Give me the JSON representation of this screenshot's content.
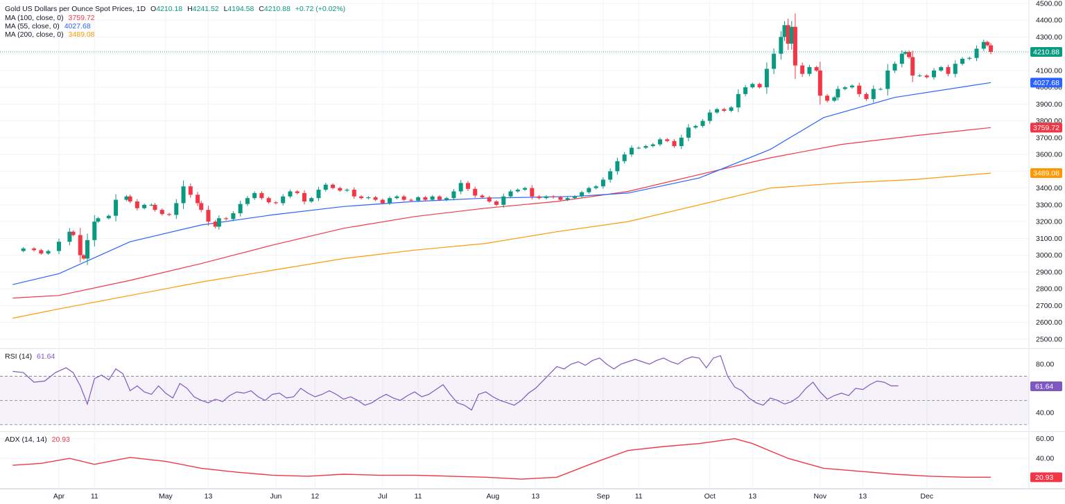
{
  "header": {
    "symbol": "Gold US Dollars per Ounce Spot Prices, 1D",
    "o_key": "O",
    "o": "4210.18",
    "h_key": "H",
    "h": "4241.52",
    "l_key": "L",
    "l": "4194.58",
    "c_key": "C",
    "c": "4210.88",
    "change": "+0.72 (+0.02%)"
  },
  "legends": {
    "ma100": {
      "label": "MA (100, close, 0)",
      "value": "3759.72",
      "color": "#f23645"
    },
    "ma55": {
      "label": "MA (55, close, 0)",
      "value": "4027.68",
      "color": "#2962ff"
    },
    "ma200": {
      "label": "MA (200, close, 0)",
      "value": "3489.08",
      "color": "#ff9800"
    },
    "rsi": {
      "label": "RSI (14)",
      "value": "61.64",
      "color": "#7e57c2"
    },
    "adx": {
      "label": "ADX (14, 14)",
      "value": "20.93",
      "color": "#f23645"
    }
  },
  "chart_data": {
    "type": "candlestick",
    "x_axis_labels": [
      {
        "label": "Apr",
        "day": 0
      },
      {
        "label": "11",
        "day": 10
      },
      {
        "label": "May",
        "day": 30
      },
      {
        "label": "13",
        "day": 42
      },
      {
        "label": "Jun",
        "day": 61
      },
      {
        "label": "12",
        "day": 72
      },
      {
        "label": "Jul",
        "day": 91
      },
      {
        "label": "11",
        "day": 101
      },
      {
        "label": "Aug",
        "day": 122
      },
      {
        "label": "13",
        "day": 134
      },
      {
        "label": "Sep",
        "day": 153
      },
      {
        "label": "11",
        "day": 163
      },
      {
        "label": "Oct",
        "day": 183
      },
      {
        "label": "13",
        "day": 195
      },
      {
        "label": "Nov",
        "day": 214
      },
      {
        "label": "13",
        "day": 226
      },
      {
        "label": "Dec",
        "day": 244
      }
    ],
    "price_axis": {
      "ticks": [
        2500,
        2600,
        2700,
        2800,
        2900,
        3000,
        3100,
        3200,
        3300,
        3400,
        3500,
        3600,
        3700,
        3800,
        3900,
        4000,
        4100,
        4200,
        4300,
        4400,
        4500
      ],
      "range": [
        2450,
        4520
      ]
    },
    "price_markers": [
      {
        "value": 4210.88,
        "label": "4210.88",
        "color": "#089981"
      },
      {
        "value": 4027.68,
        "label": "4027.68",
        "color": "#2962ff"
      },
      {
        "value": 3759.72,
        "label": "3759.72",
        "color": "#f23645"
      },
      {
        "value": 3489.08,
        "label": "3489.08",
        "color": "#ff9800"
      }
    ],
    "price_series": [
      [
        -12,
        3025
      ],
      [
        -10,
        3040
      ],
      [
        -7,
        3030
      ],
      [
        -5,
        3010
      ],
      [
        -3,
        3025
      ],
      [
        0,
        3080
      ],
      [
        3,
        3140
      ],
      [
        4,
        3120
      ],
      [
        6,
        3000
      ],
      [
        7,
        2980
      ],
      [
        8,
        3090
      ],
      [
        10,
        3200
      ],
      [
        11,
        3220
      ],
      [
        14,
        3235
      ],
      [
        16,
        3330
      ],
      [
        19,
        3350
      ],
      [
        20,
        3320
      ],
      [
        22,
        3280
      ],
      [
        24,
        3300
      ],
      [
        26,
        3300
      ],
      [
        27,
        3270
      ],
      [
        29,
        3245
      ],
      [
        31,
        3240
      ],
      [
        33,
        3310
      ],
      [
        35,
        3410
      ],
      [
        37,
        3360
      ],
      [
        39,
        3310
      ],
      [
        40,
        3270
      ],
      [
        42,
        3200
      ],
      [
        44,
        3170
      ],
      [
        45,
        3220
      ],
      [
        47,
        3215
      ],
      [
        49,
        3250
      ],
      [
        51,
        3305
      ],
      [
        53,
        3340
      ],
      [
        55,
        3370
      ],
      [
        57,
        3340
      ],
      [
        59,
        3315
      ],
      [
        61,
        3310
      ],
      [
        63,
        3350
      ],
      [
        65,
        3380
      ],
      [
        67,
        3370
      ],
      [
        69,
        3320
      ],
      [
        71,
        3340
      ],
      [
        73,
        3390
      ],
      [
        75,
        3420
      ],
      [
        77,
        3400
      ],
      [
        79,
        3385
      ],
      [
        81,
        3390
      ],
      [
        83,
        3350
      ],
      [
        85,
        3340
      ],
      [
        87,
        3345
      ],
      [
        89,
        3330
      ],
      [
        91,
        3310
      ],
      [
        93,
        3340
      ],
      [
        95,
        3350
      ],
      [
        97,
        3330
      ],
      [
        99,
        3325
      ],
      [
        101,
        3345
      ],
      [
        103,
        3330
      ],
      [
        105,
        3350
      ],
      [
        107,
        3330
      ],
      [
        109,
        3340
      ],
      [
        111,
        3380
      ],
      [
        113,
        3430
      ],
      [
        115,
        3395
      ],
      [
        117,
        3355
      ],
      [
        119,
        3345
      ],
      [
        121,
        3320
      ],
      [
        123,
        3300
      ],
      [
        125,
        3350
      ],
      [
        127,
        3380
      ],
      [
        129,
        3390
      ],
      [
        131,
        3400
      ],
      [
        133,
        3350
      ],
      [
        135,
        3340
      ],
      [
        137,
        3350
      ],
      [
        139,
        3345
      ],
      [
        141,
        3330
      ],
      [
        143,
        3340
      ],
      [
        145,
        3350
      ],
      [
        147,
        3375
      ],
      [
        149,
        3400
      ],
      [
        151,
        3410
      ],
      [
        153,
        3450
      ],
      [
        155,
        3500
      ],
      [
        157,
        3560
      ],
      [
        159,
        3600
      ],
      [
        161,
        3640
      ],
      [
        163,
        3640
      ],
      [
        165,
        3650
      ],
      [
        167,
        3660
      ],
      [
        169,
        3690
      ],
      [
        171,
        3680
      ],
      [
        173,
        3650
      ],
      [
        175,
        3700
      ],
      [
        177,
        3760
      ],
      [
        179,
        3770
      ],
      [
        181,
        3800
      ],
      [
        183,
        3850
      ],
      [
        185,
        3870
      ],
      [
        187,
        3860
      ],
      [
        189,
        3880
      ],
      [
        191,
        3960
      ],
      [
        193,
        4000
      ],
      [
        195,
        4020
      ],
      [
        197,
        4000
      ],
      [
        199,
        4110
      ],
      [
        201,
        4200
      ],
      [
        203,
        4300
      ],
      [
        204,
        4370
      ],
      [
        205,
        4260
      ],
      [
        206,
        4360
      ],
      [
        207,
        4130
      ],
      [
        209,
        4080
      ],
      [
        211,
        4120
      ],
      [
        213,
        4100
      ],
      [
        214,
        3950
      ],
      [
        216,
        3920
      ],
      [
        218,
        3940
      ],
      [
        219,
        3990
      ],
      [
        221,
        4000
      ],
      [
        223,
        4010
      ],
      [
        225,
        3960
      ],
      [
        227,
        3930
      ],
      [
        229,
        3990
      ],
      [
        231,
        3990
      ],
      [
        233,
        4100
      ],
      [
        235,
        4140
      ],
      [
        237,
        4200
      ],
      [
        238,
        4210
      ],
      [
        239,
        4180
      ],
      [
        240,
        4070
      ],
      [
        242,
        4070
      ],
      [
        244,
        4060
      ],
      [
        246,
        4100
      ],
      [
        248,
        4120
      ],
      [
        250,
        4080
      ],
      [
        252,
        4140
      ],
      [
        254,
        4170
      ],
      [
        256,
        4175
      ],
      [
        258,
        4230
      ],
      [
        260,
        4270
      ],
      [
        261,
        4250
      ],
      [
        262,
        4211
      ]
    ],
    "ma55": [
      [
        -13,
        2825
      ],
      [
        0,
        2890
      ],
      [
        20,
        3080
      ],
      [
        40,
        3180
      ],
      [
        60,
        3240
      ],
      [
        80,
        3290
      ],
      [
        100,
        3320
      ],
      [
        120,
        3340
      ],
      [
        145,
        3350
      ],
      [
        160,
        3370
      ],
      [
        180,
        3460
      ],
      [
        200,
        3630
      ],
      [
        215,
        3820
      ],
      [
        235,
        3940
      ],
      [
        262,
        4028
      ]
    ],
    "ma100": [
      [
        -13,
        2745
      ],
      [
        0,
        2760
      ],
      [
        20,
        2850
      ],
      [
        40,
        2950
      ],
      [
        60,
        3060
      ],
      [
        80,
        3160
      ],
      [
        100,
        3230
      ],
      [
        120,
        3280
      ],
      [
        140,
        3320
      ],
      [
        160,
        3380
      ],
      [
        180,
        3480
      ],
      [
        200,
        3580
      ],
      [
        220,
        3660
      ],
      [
        240,
        3710
      ],
      [
        262,
        3760
      ]
    ],
    "ma200": [
      [
        -13,
        2625
      ],
      [
        0,
        2680
      ],
      [
        20,
        2760
      ],
      [
        40,
        2840
      ],
      [
        60,
        2910
      ],
      [
        80,
        2980
      ],
      [
        100,
        3030
      ],
      [
        120,
        3070
      ],
      [
        140,
        3140
      ],
      [
        160,
        3200
      ],
      [
        180,
        3300
      ],
      [
        200,
        3400
      ],
      [
        220,
        3430
      ],
      [
        240,
        3450
      ],
      [
        262,
        3489
      ]
    ],
    "rsi": {
      "ticks": [
        40,
        80
      ],
      "range": [
        25,
        92
      ],
      "bands": [
        30,
        50,
        70
      ],
      "series": [
        [
          -13,
          74
        ],
        [
          -10,
          73
        ],
        [
          -7,
          65
        ],
        [
          -4,
          66
        ],
        [
          -1,
          73
        ],
        [
          2,
          77
        ],
        [
          4,
          73
        ],
        [
          6,
          62
        ],
        [
          8,
          47
        ],
        [
          10,
          68
        ],
        [
          12,
          71
        ],
        [
          14,
          67
        ],
        [
          16,
          76
        ],
        [
          18,
          72
        ],
        [
          20,
          58
        ],
        [
          22,
          62
        ],
        [
          24,
          57
        ],
        [
          26,
          55
        ],
        [
          28,
          62
        ],
        [
          30,
          56
        ],
        [
          32,
          52
        ],
        [
          34,
          64
        ],
        [
          36,
          60
        ],
        [
          38,
          53
        ],
        [
          40,
          50
        ],
        [
          42,
          48
        ],
        [
          44,
          51
        ],
        [
          46,
          49
        ],
        [
          48,
          54
        ],
        [
          50,
          57
        ],
        [
          52,
          56
        ],
        [
          54,
          58
        ],
        [
          56,
          53
        ],
        [
          58,
          50
        ],
        [
          60,
          55
        ],
        [
          62,
          56
        ],
        [
          64,
          52
        ],
        [
          66,
          53
        ],
        [
          68,
          60
        ],
        [
          70,
          56
        ],
        [
          72,
          53
        ],
        [
          74,
          55
        ],
        [
          76,
          58
        ],
        [
          78,
          55
        ],
        [
          80,
          51
        ],
        [
          82,
          53
        ],
        [
          84,
          50
        ],
        [
          86,
          46
        ],
        [
          88,
          48
        ],
        [
          90,
          52
        ],
        [
          92,
          55
        ],
        [
          94,
          52
        ],
        [
          96,
          50
        ],
        [
          98,
          54
        ],
        [
          100,
          57
        ],
        [
          102,
          53
        ],
        [
          104,
          55
        ],
        [
          106,
          59
        ],
        [
          108,
          63
        ],
        [
          110,
          55
        ],
        [
          112,
          48
        ],
        [
          114,
          46
        ],
        [
          116,
          42
        ],
        [
          118,
          55
        ],
        [
          120,
          57
        ],
        [
          122,
          53
        ],
        [
          124,
          50
        ],
        [
          126,
          48
        ],
        [
          128,
          46
        ],
        [
          130,
          50
        ],
        [
          132,
          56
        ],
        [
          134,
          60
        ],
        [
          136,
          66
        ],
        [
          138,
          72
        ],
        [
          140,
          78
        ],
        [
          142,
          76
        ],
        [
          144,
          80
        ],
        [
          146,
          82
        ],
        [
          148,
          79
        ],
        [
          150,
          83
        ],
        [
          152,
          85
        ],
        [
          154,
          80
        ],
        [
          156,
          76
        ],
        [
          158,
          80
        ],
        [
          160,
          82
        ],
        [
          162,
          84
        ],
        [
          164,
          82
        ],
        [
          166,
          80
        ],
        [
          168,
          83
        ],
        [
          170,
          85
        ],
        [
          172,
          82
        ],
        [
          174,
          80
        ],
        [
          176,
          84
        ],
        [
          178,
          86
        ],
        [
          180,
          85
        ],
        [
          182,
          77
        ],
        [
          184,
          85
        ],
        [
          186,
          87
        ],
        [
          188,
          70
        ],
        [
          190,
          61
        ],
        [
          192,
          58
        ],
        [
          194,
          52
        ],
        [
          196,
          48
        ],
        [
          198,
          46
        ],
        [
          200,
          52
        ],
        [
          202,
          50
        ],
        [
          204,
          47
        ],
        [
          206,
          49
        ],
        [
          208,
          53
        ],
        [
          210,
          60
        ],
        [
          212,
          65
        ],
        [
          214,
          57
        ],
        [
          216,
          51
        ],
        [
          218,
          54
        ],
        [
          220,
          56
        ],
        [
          222,
          54
        ],
        [
          224,
          60
        ],
        [
          226,
          59
        ],
        [
          228,
          63
        ],
        [
          230,
          66
        ],
        [
          232,
          65
        ],
        [
          234,
          62
        ],
        [
          236,
          62
        ]
      ]
    },
    "adx": {
      "ticks": [
        40,
        60
      ],
      "range": [
        10,
        66
      ],
      "series": [
        [
          -13,
          33
        ],
        [
          -5,
          35
        ],
        [
          3,
          40
        ],
        [
          10,
          34
        ],
        [
          20,
          41
        ],
        [
          30,
          37
        ],
        [
          40,
          30
        ],
        [
          50,
          26
        ],
        [
          60,
          23
        ],
        [
          70,
          22
        ],
        [
          80,
          24
        ],
        [
          90,
          23
        ],
        [
          100,
          23
        ],
        [
          110,
          22
        ],
        [
          120,
          21
        ],
        [
          130,
          19
        ],
        [
          140,
          21
        ],
        [
          150,
          35
        ],
        [
          160,
          48
        ],
        [
          170,
          52
        ],
        [
          180,
          55
        ],
        [
          190,
          60
        ],
        [
          195,
          55
        ],
        [
          205,
          40
        ],
        [
          215,
          30
        ],
        [
          225,
          27
        ],
        [
          235,
          24
        ],
        [
          245,
          22
        ],
        [
          255,
          21
        ],
        [
          262,
          21
        ]
      ]
    }
  }
}
